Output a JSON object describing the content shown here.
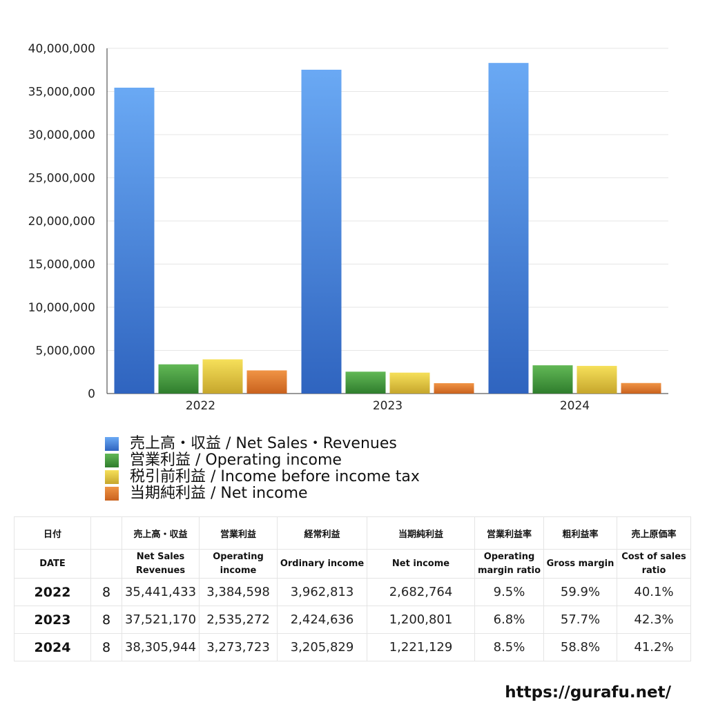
{
  "chart_data": {
    "type": "bar",
    "categories": [
      "2022",
      "2023",
      "2024"
    ],
    "series": [
      {
        "name": "売上高・収益 / Net Sales・Revenues",
        "values": [
          35441433,
          37521170,
          38305944
        ],
        "color": "#4a86dc"
      },
      {
        "name": "営業利益 / Operating income",
        "values": [
          3384598,
          2535272,
          3273723
        ],
        "color": "#4a9e44"
      },
      {
        "name": "税引前利益 / Income before income tax",
        "values": [
          3962813,
          2424636,
          3205829
        ],
        "color": "#e3c43a"
      },
      {
        "name": "当期純利益 / Net income",
        "values": [
          2682764,
          1200801,
          1221129
        ],
        "color": "#dc7a2e"
      }
    ],
    "ylim": [
      0,
      40000000
    ],
    "yticks": [
      0,
      5000000,
      10000000,
      15000000,
      20000000,
      25000000,
      30000000,
      35000000,
      40000000
    ],
    "ytick_labels": [
      "0",
      "5,000,000",
      "10,000,000",
      "15,000,000",
      "20,000,000",
      "25,000,000",
      "30,000,000",
      "35,000,000",
      "40,000,000"
    ],
    "grid": true,
    "legend_position": "bottom",
    "title": "",
    "xlabel": "",
    "ylabel": ""
  },
  "table": {
    "headers_jp": [
      "日付",
      "",
      "売上高・収益",
      "営業利益",
      "経常利益",
      "当期純利益",
      "営業利益率",
      "粗利益率",
      "売上原価率"
    ],
    "headers_en": [
      "DATE",
      "",
      "Net Sales Revenues",
      "Operating income",
      "Ordinary income",
      "Net income",
      "Operating margin ratio",
      "Gross margin",
      "Cost of sales ratio"
    ],
    "rows": [
      [
        "2022",
        "8",
        "35,441,433",
        "3,384,598",
        "3,962,813",
        "2,682,764",
        "9.5%",
        "59.9%",
        "40.1%"
      ],
      [
        "2023",
        "8",
        "37,521,170",
        "2,535,272",
        "2,424,636",
        "1,200,801",
        "6.8%",
        "57.7%",
        "42.3%"
      ],
      [
        "2024",
        "8",
        "38,305,944",
        "3,273,723",
        "3,205,829",
        "1,221,129",
        "8.5%",
        "58.8%",
        "41.2%"
      ]
    ]
  },
  "footer": {
    "url": "https://gurafu.net/"
  }
}
